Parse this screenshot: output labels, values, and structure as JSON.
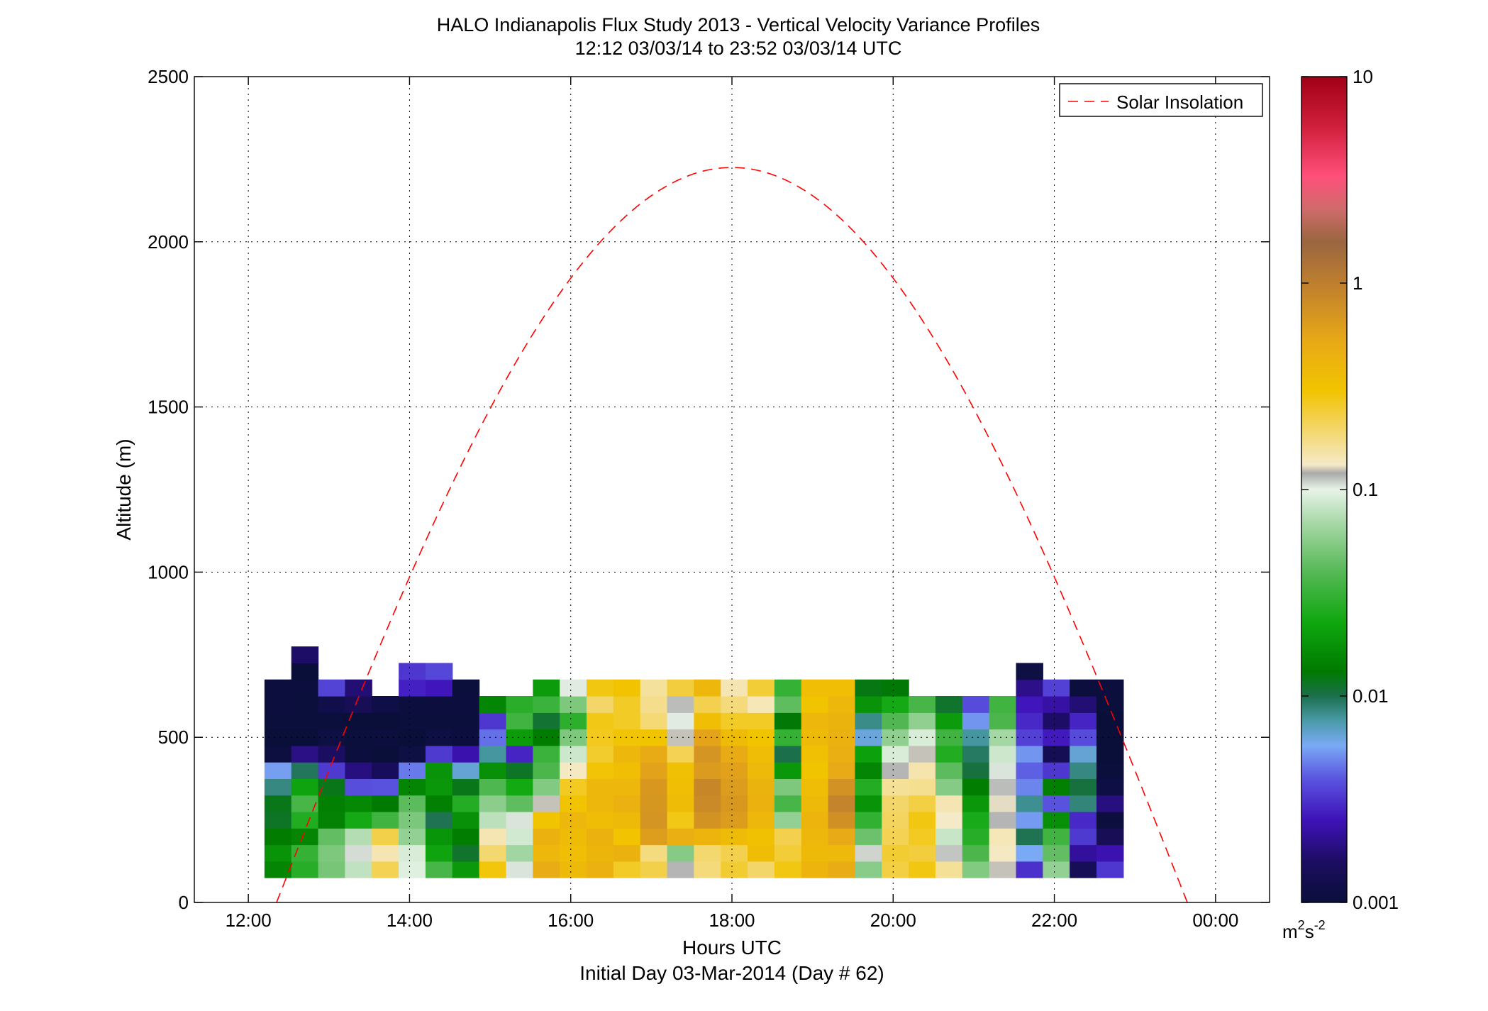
{
  "chart_data": {
    "type": "heatmap",
    "title": "HALO Indianapolis Flux Study 2013 - Vertical Velocity Variance Profiles",
    "subtitle": "12:12 03/03/14 to 23:52 03/03/14  UTC",
    "xlabel": "Hours UTC",
    "xlabel2": "Initial Day 03-Mar-2014 (Day # 62)",
    "ylabel": "Altitude (m)",
    "x_ticks": [
      "12:00",
      "14:00",
      "16:00",
      "18:00",
      "20:00",
      "22:00",
      "00:00"
    ],
    "x_tick_hours": [
      12,
      14,
      16,
      18,
      20,
      22,
      24
    ],
    "xlim_hours": [
      11.33,
      24.67
    ],
    "y_ticks": [
      0,
      500,
      1000,
      1500,
      2000,
      2500
    ],
    "ylim": [
      0,
      2500
    ],
    "grid": true,
    "legend": {
      "position": "top-right",
      "entries": [
        "Solar Insolation"
      ]
    },
    "colorbar": {
      "scale": "log",
      "range": [
        0.001,
        10
      ],
      "ticks": [
        "0.001",
        "0.01",
        "0.1",
        "1",
        "10"
      ],
      "tick_values": [
        0.001,
        0.01,
        0.1,
        1,
        10
      ],
      "unit_base": "m",
      "unit_exp1": "2",
      "unit_mid": "s",
      "unit_exp2": "-2"
    },
    "variance_profiles": {
      "start_hour": 12.2,
      "time_step_hours": 0.333,
      "altitude_bottom": 75,
      "altitude_step": 50,
      "profile_tops": [
        650,
        750,
        650,
        650,
        600,
        700,
        700,
        650,
        600,
        600,
        650,
        650,
        650,
        650,
        650,
        650,
        650,
        650,
        650,
        650,
        650,
        650,
        650,
        650,
        600,
        600,
        600,
        600,
        700,
        650,
        650,
        650
      ],
      "log_variance_profiles": [
        [
          -1.82,
          -1.75,
          -1.87,
          -1.94,
          -1.92,
          -2.07,
          -2.26,
          -2.97,
          -3.01,
          -2.99,
          -2.98,
          -2.98
        ],
        [
          -1.56,
          -1.51,
          -1.82,
          -1.58,
          -1.45,
          -1.66,
          -2.02,
          -2.72,
          -3.01,
          -2.99,
          -2.99,
          -2.98,
          -3.0,
          -2.79
        ],
        [
          -1.3,
          -1.28,
          -1.36,
          -1.84,
          -1.85,
          -1.92,
          -2.48,
          -2.81,
          -2.96,
          -2.99,
          -2.91,
          -2.45
        ],
        [
          -1.1,
          -0.97,
          -1.13,
          -1.62,
          -1.8,
          -2.42,
          -2.73,
          -2.98,
          -2.99,
          -3.01,
          -2.86,
          -2.76
        ],
        [
          -0.67,
          -0.84,
          -0.65,
          -1.47,
          -1.88,
          -2.41,
          -2.84,
          -3.01,
          -2.98,
          -3.0,
          -2.94
        ],
        [
          -1.02,
          -1.04,
          -1.22,
          -1.29,
          -1.38,
          -1.82,
          -2.33,
          -2.96,
          -3.0,
          -2.99,
          -2.98,
          -2.56,
          -2.49
        ],
        [
          -1.45,
          -1.66,
          -1.74,
          -2.01,
          -1.85,
          -1.73,
          -1.75,
          -2.48,
          -2.96,
          -2.99,
          -2.98,
          -2.59,
          -2.44
        ],
        [
          -1.72,
          -1.95,
          -1.86,
          -1.76,
          -1.57,
          -1.92,
          -2.19,
          -2.63,
          -2.98,
          -2.99,
          -2.98,
          -2.99
        ],
        [
          -0.54,
          -0.72,
          -0.84,
          -1.11,
          -1.24,
          -1.42,
          -1.76,
          -2.11,
          -2.35,
          -2.49,
          -1.82
        ],
        [
          -0.98,
          -1.18,
          -1.06,
          -0.98,
          -1.37,
          -1.63,
          -1.94,
          -2.55,
          -1.71,
          -1.47,
          -1.55
        ],
        [
          -0.31,
          -0.41,
          -0.36,
          -0.52,
          -0.91,
          -1.27,
          -1.43,
          -1.49,
          -1.87,
          -1.96,
          -1.49,
          -1.71,
          -1.75
        ],
        [
          -0.43,
          -0.47,
          -0.45,
          -0.41,
          -0.51,
          -0.58,
          -0.87,
          -1.07,
          -1.28,
          -1.54,
          -1.28,
          -0.99,
          -0.74,
          -0.69,
          -0.71
        ],
        [
          -0.35,
          -0.39,
          -0.36,
          -0.46,
          -0.41,
          -0.41,
          -0.53,
          -0.6,
          -0.57,
          -0.56,
          -0.71,
          -0.55,
          -0.49,
          -0.52,
          -0.66
        ],
        [
          -0.59,
          -0.36,
          -0.51,
          -0.43,
          -0.35,
          -0.41,
          -0.47,
          -0.41,
          -0.53,
          -0.59,
          -0.59,
          -0.51,
          -0.61,
          -0.82,
          -1.28
        ],
        [
          -0.65,
          -0.75,
          -0.21,
          -0.15,
          -0.16,
          -0.17,
          -0.24,
          -0.3,
          -0.52,
          -0.73,
          -0.77,
          -0.8,
          -0.9,
          -1.13,
          -1.73
        ],
        [
          -0.92,
          -1.26,
          -0.33,
          -0.56,
          -0.45,
          -0.47,
          -0.48,
          -0.67,
          -0.91,
          -0.99,
          -0.93,
          -0.63,
          -0.69,
          -1.04,
          -1.48
        ],
        [
          -0.74,
          -0.72,
          -0.38,
          -0.14,
          -0.08,
          -0.06,
          -0.19,
          -0.15,
          -0.25,
          -0.47,
          -0.66,
          -0.4,
          -0.42,
          -0.51,
          -0.62
        ],
        [
          -0.61,
          -0.66,
          -0.44,
          -0.2,
          -0.17,
          -0.2,
          -0.23,
          -0.3,
          -0.45,
          -0.59,
          -0.74,
          -0.84,
          -0.74,
          -0.76,
          -0.59
        ],
        [
          -0.71,
          -0.46,
          -0.49,
          -0.4,
          -0.36,
          -0.37,
          -0.42,
          -0.46,
          -0.52,
          -0.59,
          -0.85,
          -0.62,
          -0.61,
          -0.59,
          -0.57
        ],
        [
          -0.55,
          -0.62,
          -0.66,
          -1.22,
          -1.45,
          -1.28,
          -1.73,
          -2.0,
          -1.51,
          -1.89,
          -1.37,
          -1.51,
          -1.17,
          -1.33,
          -1.08
        ],
        [
          -0.38,
          -0.43,
          -0.41,
          -0.38,
          -0.43,
          -0.46,
          -0.52,
          -0.48,
          -0.43,
          -0.41,
          -0.52,
          -0.47,
          -0.41,
          -0.68,
          -0.83
        ],
        [
          -0.31,
          -0.42,
          -0.29,
          -0.12,
          -0.04,
          -0.13,
          -0.29,
          -0.33,
          -0.35,
          -0.37,
          -0.41,
          -0.47,
          -0.57,
          -0.59,
          -0.54
        ],
        [
          -1.25,
          -0.96,
          -1.33,
          -1.52,
          -1.75,
          -1.57,
          -1.82,
          -1.68,
          -2.2,
          -2.08,
          -1.75,
          -1.91,
          -1.82,
          -2.05,
          -2.32
        ],
        [
          -0.64,
          -0.61,
          -0.67,
          -0.69,
          -0.71,
          -0.79,
          -0.92,
          -1.04,
          -1.23,
          -1.41,
          -1.62,
          -1.89,
          -1.96,
          -2.26,
          -2.23
        ],
        [
          -0.55,
          -0.63,
          -0.58,
          -0.55,
          -0.64,
          -0.78,
          -0.83,
          -0.91,
          -1.04,
          -1.23,
          -1.45,
          -1.67,
          -1.76,
          -2.01,
          -1.64
        ],
        [
          -0.79,
          -0.94,
          -1.08,
          -0.88,
          -0.84,
          -1.26,
          -1.38,
          -1.58,
          -1.47,
          -1.71,
          -1.95,
          -2.04,
          -2.24,
          -2.52,
          -2.45
        ],
        [
          -1.27,
          -1.43,
          -1.56,
          -1.61,
          -1.73,
          -1.86,
          -1.98,
          -2.03,
          -2.11,
          -2.28,
          -2.43,
          -2.61,
          -2.74,
          -2.85,
          -2.89
        ],
        [
          -0.91,
          -0.87,
          -0.85,
          -0.92,
          -0.89,
          -0.93,
          -0.98,
          -1.07,
          -1.17,
          -1.43,
          -1.47,
          -1.51,
          -1.48,
          -1.62,
          -1.48,
          -1.51
        ],
        [
          -2.51,
          -2.24,
          -2.01,
          -2.27,
          -2.09,
          -2.31,
          -2.38,
          -2.28,
          -2.46,
          -2.53,
          -2.59,
          -2.71,
          -2.96,
          -2.89,
          -2.99
        ],
        [
          -1.22,
          -1.36,
          -1.47,
          -1.76,
          -2.41,
          -1.85,
          -2.49,
          -2.87,
          -2.58,
          -2.79,
          -2.65,
          -2.46,
          -2.38,
          -2.52,
          -2.29
        ],
        [
          -2.85,
          -2.67,
          -2.48,
          -2.53,
          -2.06,
          -1.98,
          -2.07,
          -2.19,
          -2.43,
          -2.55,
          -2.76,
          -2.98,
          -2.97,
          -2.99,
          -3.0,
          -2.96
        ],
        [
          -2.49,
          -2.62,
          -2.86,
          -2.98,
          -2.73,
          -2.95,
          -2.99,
          -3.0,
          -3.01,
          -3.0,
          -2.99,
          -2.98
        ]
      ]
    },
    "solar_insolation": {
      "label": "Solar Insolation",
      "color": "#ff0000",
      "solar_noon_hour": 18.0,
      "peak_altitude": 2225,
      "half_width_hours": 5.65
    },
    "colors": {
      "axis": "#000000",
      "grid": "#000000",
      "background": "#ffffff",
      "curve": "#ff0000"
    }
  }
}
